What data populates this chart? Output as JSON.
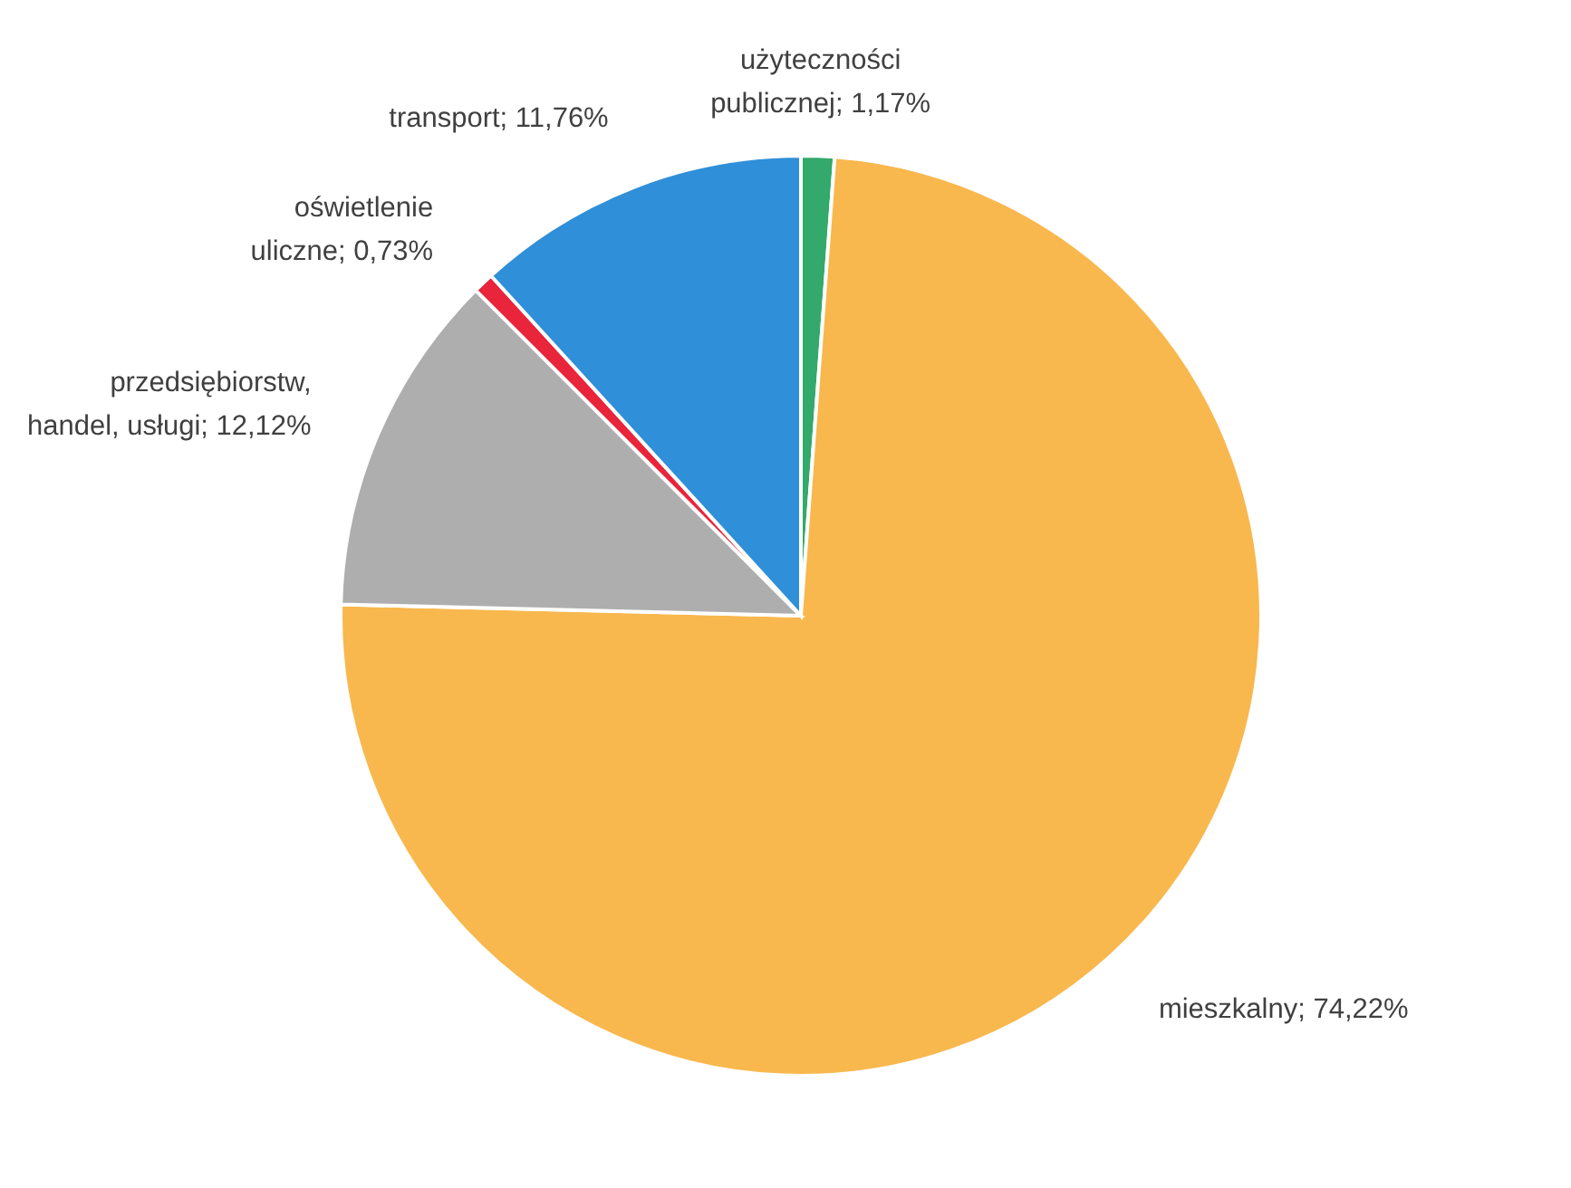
{
  "chart_data": {
    "type": "pie",
    "categories": [
      "użyteczności publicznej",
      "mieszkalny",
      "przedsiębiorstw, handel, usługi",
      "oświetlenie uliczne",
      "transport"
    ],
    "values": [
      1.17,
      74.22,
      12.12,
      0.73,
      11.76
    ],
    "colors": [
      "#33a96b",
      "#f8b84e",
      "#aeaeae",
      "#e8253a",
      "#2f8fd8"
    ],
    "value_labels": [
      "1,17%",
      "74,22%",
      "12,12%",
      "0,73%",
      "11,76%"
    ]
  }
}
